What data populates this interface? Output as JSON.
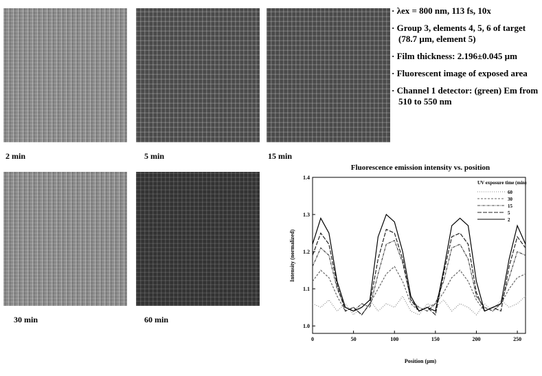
{
  "images": [
    {
      "caption": "2 min"
    },
    {
      "caption": "5 min"
    },
    {
      "caption": "15 min"
    },
    {
      "caption": "30 min"
    },
    {
      "caption": "60 min"
    }
  ],
  "bullets": [
    "λex = 800 nm, 113 fs, 10x",
    "Group 3, elements 4, 5, 6 of target (78.7 µm, element 5)",
    "Film thickness:  2.196±0.045 µm",
    "Fluorescent image of exposed area",
    "Channel 1 detector:  (green) Em from 510 to 550 nm"
  ],
  "chart_data": {
    "type": "line",
    "title": "Fluorescence emission intensity vs. position",
    "xlabel": "Position (µm)",
    "ylabel": "Intensity (normalized)",
    "legend_title": "UV exposure time (min)",
    "legend": "upper right",
    "x": [
      0,
      10,
      20,
      30,
      40,
      50,
      60,
      70,
      80,
      90,
      100,
      110,
      120,
      130,
      140,
      150,
      160,
      170,
      180,
      190,
      200,
      210,
      220,
      230,
      240,
      250,
      260
    ],
    "series": [
      {
        "name": "60",
        "color": "#888888",
        "values": [
          1.06,
          1.05,
          1.07,
          1.04,
          1.06,
          1.03,
          1.05,
          1.07,
          1.04,
          1.06,
          1.05,
          1.08,
          1.04,
          1.03,
          1.06,
          1.05,
          1.07,
          1.04,
          1.06,
          1.05,
          1.03,
          1.06,
          1.04,
          1.07,
          1.05,
          1.06,
          1.08
        ]
      },
      {
        "name": "30",
        "color": "#666666",
        "values": [
          1.12,
          1.15,
          1.13,
          1.08,
          1.04,
          1.05,
          1.03,
          1.06,
          1.1,
          1.14,
          1.16,
          1.12,
          1.06,
          1.04,
          1.05,
          1.06,
          1.09,
          1.13,
          1.15,
          1.12,
          1.07,
          1.04,
          1.05,
          1.06,
          1.1,
          1.13,
          1.14
        ]
      },
      {
        "name": "15",
        "color": "#444444",
        "values": [
          1.16,
          1.21,
          1.19,
          1.1,
          1.05,
          1.04,
          1.06,
          1.05,
          1.14,
          1.22,
          1.23,
          1.17,
          1.07,
          1.05,
          1.04,
          1.06,
          1.12,
          1.21,
          1.22,
          1.18,
          1.08,
          1.05,
          1.04,
          1.06,
          1.13,
          1.2,
          1.19
        ]
      },
      {
        "name": "5",
        "color": "#222222",
        "values": [
          1.19,
          1.25,
          1.22,
          1.11,
          1.04,
          1.05,
          1.03,
          1.06,
          1.18,
          1.26,
          1.25,
          1.18,
          1.07,
          1.04,
          1.05,
          1.03,
          1.14,
          1.24,
          1.25,
          1.22,
          1.09,
          1.04,
          1.05,
          1.04,
          1.16,
          1.24,
          1.21
        ]
      },
      {
        "name": "2",
        "color": "#000000",
        "values": [
          1.22,
          1.29,
          1.25,
          1.12,
          1.05,
          1.04,
          1.05,
          1.07,
          1.24,
          1.3,
          1.28,
          1.2,
          1.08,
          1.04,
          1.05,
          1.04,
          1.15,
          1.27,
          1.29,
          1.27,
          1.12,
          1.04,
          1.05,
          1.06,
          1.18,
          1.27,
          1.22
        ]
      }
    ],
    "xlim": [
      0,
      260
    ],
    "xticks": [
      0,
      50,
      100,
      150,
      200,
      250
    ],
    "ylim": [
      0.98,
      1.4
    ],
    "yticks": [
      {
        "value": 1,
        "label": "1.0"
      },
      {
        "value": 1.1,
        "label": "1.1"
      },
      {
        "value": 1.2,
        "label": "1.2"
      },
      {
        "value": 1.3,
        "label": "1.3"
      },
      {
        "value": 1.4,
        "label": "1.4"
      }
    ]
  }
}
